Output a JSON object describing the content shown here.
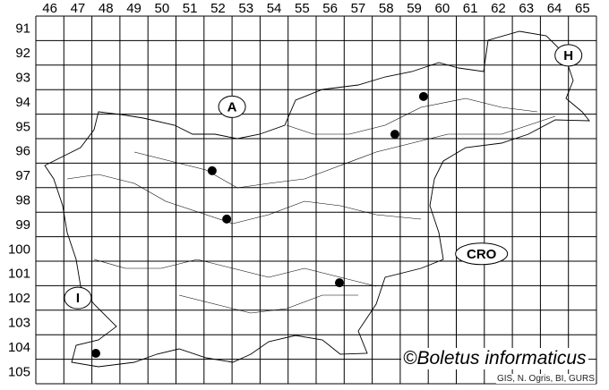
{
  "map": {
    "columns": [
      46,
      47,
      48,
      49,
      50,
      51,
      52,
      53,
      54,
      55,
      56,
      57,
      58,
      59,
      60,
      61,
      62,
      63,
      64,
      65
    ],
    "rows": [
      91,
      92,
      93,
      94,
      95,
      96,
      97,
      98,
      99,
      100,
      101,
      102,
      103,
      104,
      105
    ],
    "country_labels": [
      {
        "text": "A",
        "col": 53.0,
        "row": 94.7
      },
      {
        "text": "H",
        "col": 65.0,
        "row": 92.6
      },
      {
        "text": "CRO",
        "col": 61.9,
        "row": 100.7
      },
      {
        "text": "I",
        "col": 47.5,
        "row": 102.5
      }
    ],
    "occurrences": [
      {
        "col": 59.83,
        "row": 94.28
      },
      {
        "col": 58.81,
        "row": 95.82
      },
      {
        "col": 52.29,
        "row": 97.31
      },
      {
        "col": 52.81,
        "row": 99.28
      },
      {
        "col": 56.83,
        "row": 101.88
      },
      {
        "col": 48.14,
        "row": 104.76
      }
    ],
    "colors": {
      "grid": "#000000",
      "border": "#000000",
      "occurrence": "#000000"
    }
  },
  "copyright": "©Boletus informaticus",
  "credits": "GIS, N. Ogris, BI, GURS"
}
